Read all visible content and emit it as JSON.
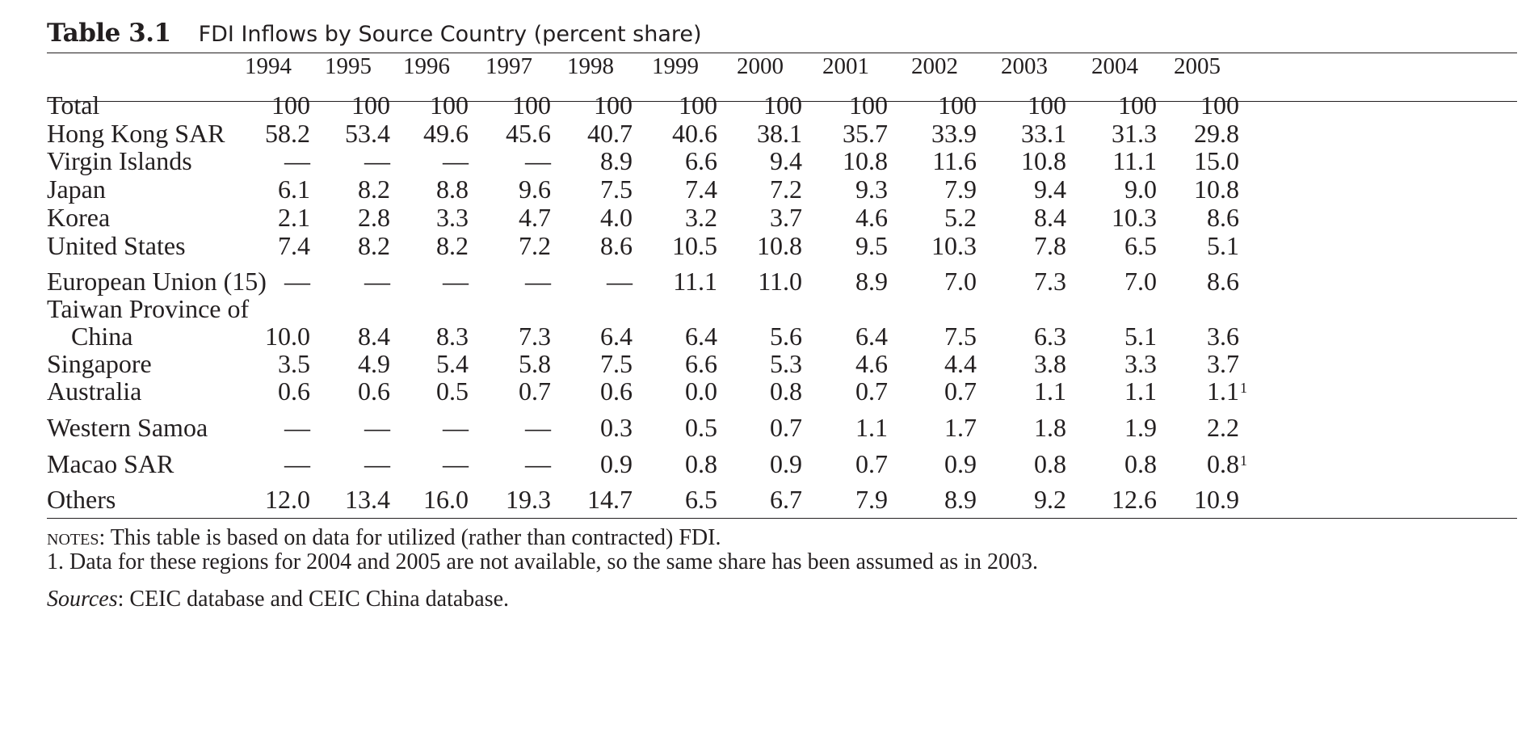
{
  "title": {
    "label": "Table 3.1",
    "caption": "FDI Inflows by Source Country (percent share)"
  },
  "columns": [
    "1994",
    "1995",
    "1996",
    "1997",
    "1998",
    "1999",
    "2000",
    "2001",
    "2002",
    "2003",
    "2004",
    "2005"
  ],
  "rows": [
    {
      "label": "Total",
      "values": [
        "100",
        "100",
        "100",
        "100",
        "100",
        "100",
        "100",
        "100",
        "100",
        "100",
        "100",
        "100"
      ]
    },
    {
      "label": "Hong Kong SAR",
      "values": [
        "58.2",
        "53.4",
        "49.6",
        "45.6",
        "40.7",
        "40.6",
        "38.1",
        "35.7",
        "33.9",
        "33.1",
        "31.3",
        "29.8"
      ]
    },
    {
      "label": "Virgin Islands",
      "values": [
        "—",
        "—",
        "—",
        "—",
        "8.9",
        "6.6",
        "9.4",
        "10.8",
        "11.6",
        "10.8",
        "11.1",
        "15.0"
      ]
    },
    {
      "label": "Japan",
      "values": [
        "6.1",
        "8.2",
        "8.8",
        "9.6",
        "7.5",
        "7.4",
        "7.2",
        "9.3",
        "7.9",
        "9.4",
        "9.0",
        "10.8"
      ]
    },
    {
      "label": "Korea",
      "values": [
        "2.1",
        "2.8",
        "3.3",
        "4.7",
        "4.0",
        "3.2",
        "3.7",
        "4.6",
        "5.2",
        "8.4",
        "10.3",
        "8.6"
      ]
    },
    {
      "label": "United States",
      "values": [
        "7.4",
        "8.2",
        "8.2",
        "7.2",
        "8.6",
        "10.5",
        "10.8",
        "9.5",
        "10.3",
        "7.8",
        "6.5",
        "5.1"
      ]
    },
    {
      "label": "European Union (15)",
      "values": [
        "—",
        "—",
        "—",
        "—",
        "—",
        "11.1",
        "11.0",
        "8.9",
        "7.0",
        "7.3",
        "7.0",
        "8.6"
      ]
    },
    {
      "label": "Taiwan Province of",
      "label2": "China",
      "values": [
        "10.0",
        "8.4",
        "8.3",
        "7.3",
        "6.4",
        "6.4",
        "5.6",
        "6.4",
        "7.5",
        "6.3",
        "5.1",
        "3.6"
      ]
    },
    {
      "label": "Singapore",
      "values": [
        "3.5",
        "4.9",
        "5.4",
        "5.8",
        "7.5",
        "6.6",
        "5.3",
        "4.6",
        "4.4",
        "3.8",
        "3.3",
        "3.7"
      ]
    },
    {
      "label": "Australia",
      "values": [
        "0.6",
        "0.6",
        "0.5",
        "0.7",
        "0.6",
        "0.0",
        "0.8",
        "0.7",
        "0.7",
        "1.1",
        "1.1",
        "1.1"
      ],
      "last_note": "1"
    },
    {
      "label": "Western Samoa",
      "values": [
        "—",
        "—",
        "—",
        "—",
        "0.3",
        "0.5",
        "0.7",
        "1.1",
        "1.7",
        "1.8",
        "1.9",
        "2.2"
      ]
    },
    {
      "label": "Macao SAR",
      "values": [
        "—",
        "—",
        "—",
        "—",
        "0.9",
        "0.8",
        "0.9",
        "0.7",
        "0.9",
        "0.8",
        "0.8",
        "0.8"
      ],
      "last_note": "1"
    },
    {
      "label": "Others",
      "values": [
        "12.0",
        "13.4",
        "16.0",
        "19.3",
        "14.7",
        "6.5",
        "6.7",
        "7.9",
        "8.9",
        "9.2",
        "12.6",
        "10.9"
      ]
    }
  ],
  "notes": {
    "notes_label": "notes",
    "notes_text": ": This table is based on data for utilized (rather than contracted) FDI.",
    "footnote_1": "1. Data for these regions for 2004 and 2005 are not available, so the same share has been assumed as in 2003.",
    "sources_label": "Sources",
    "sources_text": ": CEIC database and CEIC China database."
  }
}
